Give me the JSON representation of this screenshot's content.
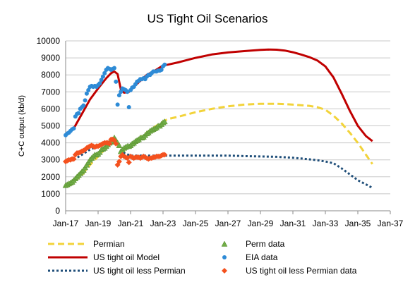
{
  "chart_data": {
    "type": "line",
    "title": "US Tight Oil Scenarios",
    "xlabel": "",
    "ylabel": "C+C output (kb/d)",
    "xlim": [
      2017.0,
      2037.0
    ],
    "ylim": [
      0,
      10000
    ],
    "y_ticks": [
      0,
      1000,
      2000,
      3000,
      4000,
      5000,
      6000,
      7000,
      8000,
      9000,
      10000
    ],
    "x_ticks": [
      {
        "x": 2017,
        "label": "Jan-17"
      },
      {
        "x": 2019,
        "label": "Jan-19"
      },
      {
        "x": 2021,
        "label": "Jan-21"
      },
      {
        "x": 2023,
        "label": "Jan-23"
      },
      {
        "x": 2025,
        "label": "Jan-25"
      },
      {
        "x": 2027,
        "label": "Jan-27"
      },
      {
        "x": 2029,
        "label": "Jan-29"
      },
      {
        "x": 2031,
        "label": "Jan-31"
      },
      {
        "x": 2033,
        "label": "Jan-33"
      },
      {
        "x": 2035,
        "label": "Jan-35"
      },
      {
        "x": 2037,
        "label": "Jan-37"
      }
    ],
    "grid": true,
    "legend_position": "bottom",
    "series": [
      {
        "name": "Permian",
        "kind": "line",
        "style": "dashed",
        "color": "#f2d33a",
        "x": [
          2017.0,
          2017.5,
          2018.0,
          2018.5,
          2019.0,
          2019.5,
          2019.9,
          2020.1,
          2020.3,
          2020.5,
          2020.8,
          2021.0,
          2021.5,
          2022.0,
          2022.5,
          2023.0,
          2023.3,
          2024.0,
          2025.0,
          2026.0,
          2027.0,
          2028.0,
          2029.0,
          2029.5,
          2030.0,
          2030.5,
          2031.0,
          2032.0,
          2032.5,
          2033.0,
          2033.5,
          2034.0,
          2034.5,
          2035.0,
          2035.5,
          2035.9
        ],
        "y": [
          1500,
          1700,
          2100,
          2700,
          3200,
          3700,
          4050,
          4150,
          3900,
          3550,
          3700,
          3850,
          4250,
          4600,
          4950,
          5250,
          5400,
          5550,
          5800,
          6000,
          6150,
          6250,
          6300,
          6300,
          6300,
          6280,
          6250,
          6180,
          6100,
          5950,
          5600,
          5150,
          4600,
          4000,
          3300,
          2750
        ]
      },
      {
        "name": "US tight oil Model",
        "kind": "line",
        "style": "solid",
        "color": "#c00000",
        "x": [
          2017.0,
          2017.5,
          2018.0,
          2018.5,
          2019.0,
          2019.5,
          2019.8,
          2020.0,
          2020.2,
          2020.4,
          2020.6,
          2020.9,
          2021.2,
          2021.6,
          2022.0,
          2022.5,
          2023.0,
          2023.3,
          2024.0,
          2025.0,
          2026.0,
          2027.0,
          2028.0,
          2029.0,
          2029.5,
          2030.0,
          2030.5,
          2031.0,
          2031.5,
          2032.0,
          2032.5,
          2033.0,
          2033.5,
          2034.0,
          2034.5,
          2035.0,
          2035.5,
          2035.9
        ],
        "y": [
          4500,
          4850,
          5700,
          6550,
          7200,
          7800,
          8100,
          8200,
          8050,
          7150,
          6950,
          7000,
          7300,
          7650,
          8000,
          8250,
          8550,
          8600,
          8750,
          9000,
          9200,
          9320,
          9400,
          9470,
          9490,
          9480,
          9430,
          9330,
          9200,
          9050,
          8850,
          8500,
          7850,
          6900,
          5900,
          5000,
          4400,
          4100
        ]
      },
      {
        "name": "US tight oil less Permian",
        "kind": "line",
        "style": "dotted",
        "color": "#1f4e79",
        "x": [
          2017.0,
          2017.5,
          2018.0,
          2018.5,
          2019.0,
          2019.5,
          2019.8,
          2020.0,
          2020.3,
          2020.6,
          2021.0,
          2021.5,
          2022.0,
          2022.5,
          2023.0,
          2024.0,
          2025.0,
          2026.0,
          2027.0,
          2028.0,
          2029.0,
          2030.0,
          2031.0,
          2031.5,
          2032.0,
          2032.5,
          2033.0,
          2033.5,
          2034.0,
          2034.5,
          2035.0,
          2035.5,
          2035.9
        ],
        "y": [
          2900,
          3000,
          3300,
          3600,
          3800,
          4000,
          4100,
          4050,
          3850,
          3400,
          3250,
          3250,
          3250,
          3250,
          3250,
          3250,
          3250,
          3250,
          3250,
          3220,
          3200,
          3180,
          3120,
          3080,
          3030,
          2980,
          2900,
          2800,
          2500,
          2150,
          1800,
          1550,
          1350
        ]
      },
      {
        "name": "Perm data",
        "kind": "scatter",
        "marker": "triangle",
        "color": "#70ad47",
        "x": [
          2017.0,
          2017.1,
          2017.2,
          2017.3,
          2017.4,
          2017.5,
          2017.6,
          2017.7,
          2017.8,
          2017.9,
          2018.0,
          2018.1,
          2018.2,
          2018.3,
          2018.4,
          2018.5,
          2018.6,
          2018.7,
          2018.8,
          2018.9,
          2019.0,
          2019.1,
          2019.2,
          2019.3,
          2019.4,
          2019.5,
          2019.6,
          2019.7,
          2019.8,
          2019.9,
          2020.0,
          2020.1,
          2020.2,
          2020.3,
          2020.4,
          2020.5,
          2020.6,
          2020.7,
          2020.8,
          2020.9,
          2021.0,
          2021.1,
          2021.2,
          2021.3,
          2021.4,
          2021.5,
          2021.6,
          2021.7,
          2021.8,
          2021.9,
          2022.0,
          2022.1,
          2022.2,
          2022.3,
          2022.4,
          2022.5,
          2022.6,
          2022.7,
          2022.8,
          2022.9,
          2023.0,
          2023.1
        ],
        "y": [
          1500,
          1550,
          1600,
          1650,
          1700,
          1800,
          1900,
          2000,
          2100,
          2200,
          2300,
          2400,
          2550,
          2700,
          2850,
          3000,
          3100,
          3200,
          3300,
          3300,
          3350,
          3450,
          3600,
          3650,
          3700,
          3800,
          3900,
          4000,
          4050,
          4100,
          4300,
          4150,
          4000,
          3850,
          3500,
          3600,
          3700,
          3750,
          3800,
          3800,
          3850,
          3950,
          4000,
          4100,
          4150,
          4200,
          4300,
          4300,
          4350,
          4450,
          4550,
          4600,
          4700,
          4750,
          4800,
          4850,
          4900,
          5000,
          5000,
          5100,
          5200,
          5250
        ]
      },
      {
        "name": "EIA data",
        "kind": "scatter",
        "marker": "circle",
        "color": "#2e8bd6",
        "x": [
          2017.0,
          2017.1,
          2017.2,
          2017.3,
          2017.4,
          2017.5,
          2017.6,
          2017.7,
          2017.8,
          2017.9,
          2018.0,
          2018.1,
          2018.2,
          2018.3,
          2018.4,
          2018.5,
          2018.6,
          2018.7,
          2018.8,
          2018.9,
          2019.0,
          2019.1,
          2019.2,
          2019.3,
          2019.4,
          2019.5,
          2019.6,
          2019.7,
          2019.8,
          2019.9,
          2020.0,
          2020.1,
          2020.2,
          2020.3,
          2020.4,
          2020.5,
          2020.6,
          2020.7,
          2020.8,
          2020.9,
          2021.0,
          2021.1,
          2021.2,
          2021.3,
          2021.4,
          2021.5,
          2021.6,
          2021.7,
          2021.8,
          2021.9,
          2022.0,
          2022.1,
          2022.2,
          2022.3,
          2022.4,
          2022.5,
          2022.6,
          2022.7,
          2022.8,
          2022.9,
          2023.0,
          2023.1
        ],
        "y": [
          4450,
          4550,
          4600,
          4700,
          4800,
          4850,
          5550,
          5700,
          5750,
          6000,
          6100,
          6200,
          6500,
          6900,
          7100,
          7300,
          7350,
          7300,
          7350,
          7300,
          7400,
          7500,
          7700,
          7900,
          8100,
          8300,
          8400,
          8350,
          8300,
          8350,
          8400,
          7600,
          6250,
          6800,
          7000,
          7200,
          7150,
          7100,
          7000,
          6100,
          7100,
          7250,
          7300,
          7450,
          7600,
          7650,
          7750,
          7750,
          7800,
          7750,
          7900,
          8000,
          8000,
          8100,
          8200,
          8200,
          8200,
          8250,
          8250,
          8300,
          8500,
          8600
        ]
      },
      {
        "name": "US tight oil less Permian data",
        "kind": "scatter",
        "marker": "diamond",
        "color": "#f4511e",
        "x": [
          2017.0,
          2017.1,
          2017.2,
          2017.3,
          2017.4,
          2017.5,
          2017.6,
          2017.7,
          2017.8,
          2017.9,
          2018.0,
          2018.1,
          2018.2,
          2018.3,
          2018.4,
          2018.5,
          2018.6,
          2018.7,
          2018.8,
          2018.9,
          2019.0,
          2019.1,
          2019.2,
          2019.3,
          2019.4,
          2019.5,
          2019.6,
          2019.7,
          2019.8,
          2019.9,
          2020.0,
          2020.1,
          2020.2,
          2020.3,
          2020.4,
          2020.5,
          2020.6,
          2020.7,
          2020.8,
          2020.9,
          2021.0,
          2021.1,
          2021.2,
          2021.3,
          2021.4,
          2021.5,
          2021.6,
          2021.7,
          2021.8,
          2021.9,
          2022.0,
          2022.1,
          2022.2,
          2022.3,
          2022.4,
          2022.5,
          2022.6,
          2022.7,
          2022.8,
          2022.9,
          2023.0,
          2023.1
        ],
        "y": [
          2900,
          2950,
          3000,
          3000,
          3050,
          3050,
          3300,
          3400,
          3400,
          3450,
          3500,
          3550,
          3600,
          3700,
          3750,
          3800,
          3850,
          3800,
          3750,
          3800,
          3800,
          3850,
          3900,
          3950,
          4000,
          4000,
          4000,
          3950,
          4200,
          4200,
          4150,
          3950,
          2700,
          2900,
          3200,
          3300,
          3200,
          3150,
          3100,
          2850,
          3200,
          3150,
          3100,
          3150,
          3150,
          3150,
          3100,
          3150,
          3200,
          3150,
          3100,
          3050,
          3100,
          3100,
          3150,
          3150,
          3200,
          3200,
          3200,
          3250,
          3300,
          3300
        ]
      }
    ]
  }
}
